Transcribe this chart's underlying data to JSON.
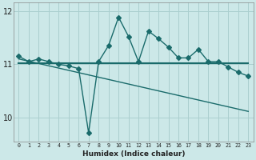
{
  "bg_color": "#cce8e8",
  "grid_color": "#aacfcf",
  "line_color": "#1a6b6b",
  "xlabel": "Humidex (Indice chaleur)",
  "xlim": [
    -0.5,
    23.5
  ],
  "ylim": [
    9.55,
    12.15
  ],
  "yticks": [
    10,
    11,
    12
  ],
  "xticks": [
    0,
    1,
    2,
    3,
    4,
    5,
    6,
    7,
    8,
    9,
    10,
    11,
    12,
    13,
    14,
    15,
    16,
    17,
    18,
    19,
    20,
    21,
    22,
    23
  ],
  "line1_x": [
    0,
    1,
    2,
    3,
    4,
    5,
    6,
    7,
    8,
    9,
    10,
    11,
    12,
    13,
    14,
    15,
    16,
    17,
    18,
    19,
    20,
    21,
    22,
    23
  ],
  "line1_y": [
    11.15,
    11.05,
    11.1,
    11.05,
    11.0,
    10.97,
    10.92,
    9.72,
    11.05,
    11.35,
    11.88,
    11.52,
    11.05,
    11.62,
    11.48,
    11.32,
    11.12,
    11.12,
    11.28,
    11.05,
    11.05,
    10.95,
    10.85,
    10.78
  ],
  "line2_x": [
    0,
    23
  ],
  "line2_y": [
    11.02,
    11.02
  ],
  "line3_x": [
    0,
    23
  ],
  "line3_y": [
    11.1,
    10.12
  ],
  "markersize": 3.0,
  "linewidth": 1.0
}
